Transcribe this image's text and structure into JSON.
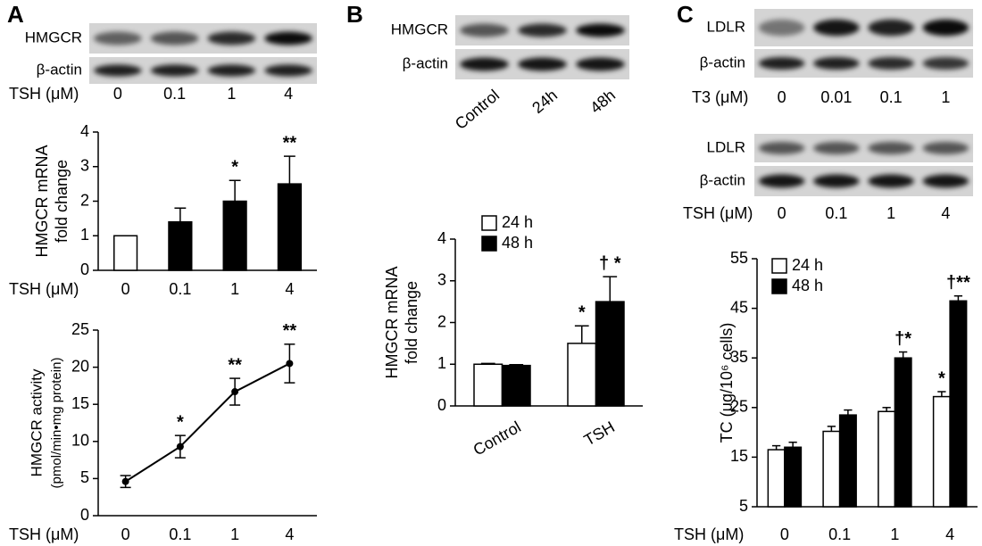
{
  "panel_labels": [
    "A",
    "B",
    "C"
  ],
  "blots": [
    {
      "rows": [
        "HMGCR",
        "β-actin"
      ],
      "condition": "TSH (μM)",
      "lanes": [
        "0",
        "0.1",
        "1",
        "4"
      ]
    },
    {
      "rows": [
        "HMGCR",
        "β-actin"
      ],
      "lanes": [
        "Control",
        "24h",
        "48h"
      ]
    },
    {
      "rows": [
        "LDLR",
        "β-actin"
      ],
      "condition": "T3 (μM)",
      "lanes": [
        "0",
        "0.01",
        "0.1",
        "1"
      ]
    },
    {
      "rows": [
        "LDLR",
        "β-actin"
      ],
      "condition": "TSH (μM)",
      "lanes": [
        "0",
        "0.1",
        "1",
        "4"
      ]
    }
  ],
  "chart_data": [
    {
      "type": "bar",
      "y_label": [
        "HMGCR mRNA",
        "fold change"
      ],
      "x_label": "TSH (μM)",
      "categories": [
        "0",
        "0.1",
        "1",
        "4"
      ],
      "series": [
        {
          "colors": [
            "#ffffff",
            "#000000",
            "#000000",
            "#000000"
          ],
          "values": [
            1,
            1.4,
            2,
            2.5
          ],
          "errors": [
            0,
            0.4,
            0.6,
            0.8
          ],
          "markers": [
            null,
            null,
            "*",
            "**"
          ]
        }
      ],
      "ylim": [
        0,
        4
      ],
      "yticks": [
        0,
        1,
        2,
        3,
        4
      ]
    },
    {
      "type": "line",
      "y_label": [
        "HMGCR activity",
        "(pmol/min•mg protein)"
      ],
      "x_label": "TSH (μM)",
      "categories": [
        "0",
        "0.1",
        "1",
        "4"
      ],
      "series": [
        {
          "color": "#000000",
          "values": [
            4.6,
            9.3,
            16.7,
            20.5
          ],
          "errors": [
            0.8,
            1.5,
            1.8,
            2.6
          ],
          "markers": [
            null,
            "*",
            "**",
            "**"
          ]
        }
      ],
      "ylim": [
        0,
        25
      ],
      "yticks": [
        0,
        5,
        10,
        15,
        20,
        25
      ]
    },
    {
      "type": "bar",
      "y_label": [
        "HMGCR mRNA",
        "fold change"
      ],
      "categories": [
        "Control",
        "TSH"
      ],
      "series": [
        {
          "name": "24 h",
          "color": "#ffffff",
          "values": [
            1,
            1.5
          ],
          "errors": [
            0.02,
            0.42
          ],
          "markers": [
            null,
            "*"
          ]
        },
        {
          "name": "48 h",
          "color": "#000000",
          "values": [
            0.97,
            2.5
          ],
          "errors": [
            0.02,
            0.6
          ],
          "markers": [
            null,
            "† *"
          ]
        }
      ],
      "ylim": [
        0,
        4
      ],
      "yticks": [
        0,
        1,
        2,
        3,
        4
      ],
      "legend": "upper-left"
    },
    {
      "type": "bar",
      "y_label": [
        "TC (μg/10⁶ cells)"
      ],
      "x_label": "TSH (μM)",
      "categories": [
        "0",
        "0.1",
        "1",
        "4"
      ],
      "series": [
        {
          "name": "24 h",
          "color": "#ffffff",
          "values": [
            16.5,
            20.2,
            24.2,
            27.2
          ],
          "errors": [
            0.8,
            1,
            0.8,
            1
          ],
          "markers": [
            null,
            null,
            null,
            "*"
          ]
        },
        {
          "name": "48 h",
          "color": "#000000",
          "values": [
            17,
            23.5,
            35,
            46.5
          ],
          "errors": [
            1,
            1,
            1.2,
            1
          ],
          "markers": [
            null,
            null,
            "†*",
            "†**"
          ]
        }
      ],
      "ylim": [
        5,
        55
      ],
      "yticks": [
        5,
        15,
        25,
        35,
        45,
        55
      ],
      "legend": "upper-left"
    }
  ]
}
